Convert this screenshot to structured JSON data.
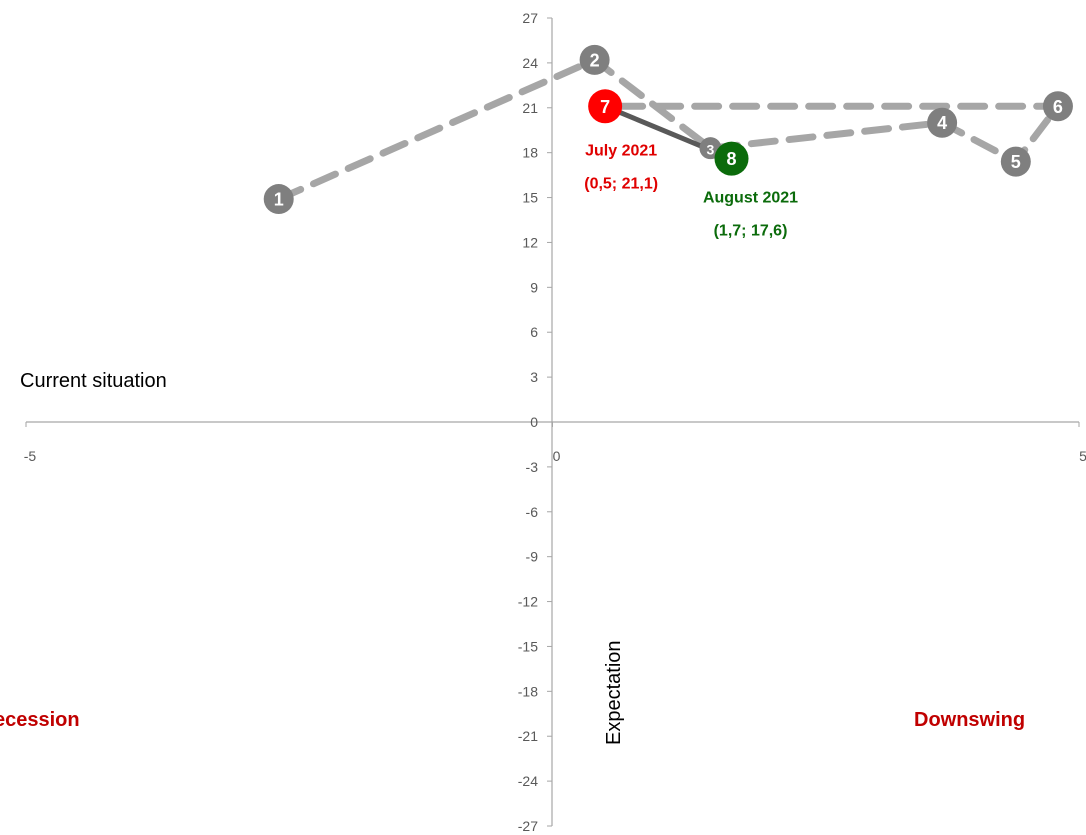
{
  "chart_data": {
    "type": "scatter",
    "xlim": [
      -5,
      5
    ],
    "ylim": [
      -27,
      27
    ],
    "x_ticks": [
      "-5",
      "0",
      "5"
    ],
    "y_ticks": [
      "27",
      "24",
      "21",
      "18",
      "15",
      "12",
      "9",
      "6",
      "3",
      "0",
      "-3",
      "-6",
      "-9",
      "-12",
      "-15",
      "-18",
      "-21",
      "-24",
      "-27"
    ],
    "xlabel": "Current situation",
    "ylabel": "Expectation",
    "quadrant_labels": {
      "bottom_left": "ecession",
      "bottom_right": "Downswing"
    },
    "grid": false,
    "points": [
      {
        "label": "1",
        "x": -2.6,
        "y": 14.9,
        "color": "#7f7f7f"
      },
      {
        "label": "2",
        "x": 0.4,
        "y": 24.2,
        "color": "#7f7f7f"
      },
      {
        "label": "3",
        "x": 1.5,
        "y": 18.3,
        "color": "#7f7f7f"
      },
      {
        "label": "4",
        "x": 3.7,
        "y": 20.0,
        "color": "#7f7f7f"
      },
      {
        "label": "5",
        "x": 4.4,
        "y": 17.4,
        "color": "#7f7f7f"
      },
      {
        "label": "6",
        "x": 4.8,
        "y": 21.1,
        "color": "#7f7f7f"
      },
      {
        "label": "7",
        "x": 0.5,
        "y": 21.1,
        "color": "#ff0000"
      },
      {
        "label": "8",
        "x": 1.7,
        "y": 17.6,
        "color": "#0b6b0b"
      }
    ],
    "series": [
      {
        "style": "dashed",
        "color": "#a6a6a6",
        "points": [
          "1",
          "2",
          "3",
          "4",
          "5",
          "6",
          "7"
        ]
      },
      {
        "style": "solid",
        "color": "#595959",
        "points": [
          "7",
          "8"
        ]
      }
    ],
    "annotations": [
      {
        "point": "7",
        "line1": "July 2021",
        "line2": "(0,5; 21,1)",
        "color": "#e00000"
      },
      {
        "point": "8",
        "line1": "August 2021",
        "line2": "(1,7; 17,6)",
        "color": "#0b6b0b"
      }
    ],
    "quadrant_color": "#c00000"
  }
}
